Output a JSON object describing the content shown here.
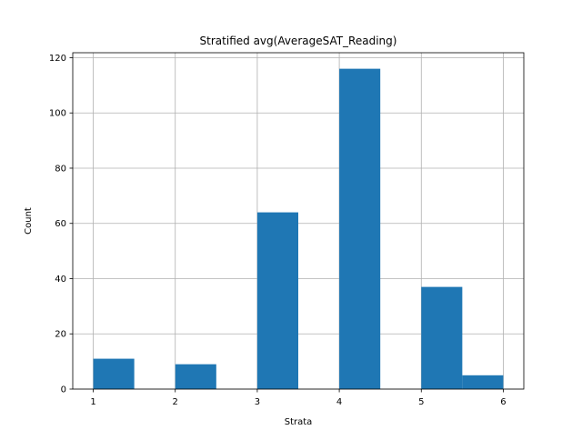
{
  "chart_data": {
    "type": "bar",
    "title": "Stratified avg(AverageSAT_Reading)",
    "xlabel": "Strata",
    "ylabel": "Count",
    "bins": [
      {
        "x0": 1.0,
        "x1": 1.5,
        "count": 11
      },
      {
        "x0": 1.5,
        "x1": 2.0,
        "count": 0
      },
      {
        "x0": 2.0,
        "x1": 2.5,
        "count": 9
      },
      {
        "x0": 2.5,
        "x1": 3.0,
        "count": 0
      },
      {
        "x0": 3.0,
        "x1": 3.5,
        "count": 64
      },
      {
        "x0": 3.5,
        "x1": 4.0,
        "count": 0
      },
      {
        "x0": 4.0,
        "x1": 4.5,
        "count": 116
      },
      {
        "x0": 4.5,
        "x1": 5.0,
        "count": 0
      },
      {
        "x0": 5.0,
        "x1": 5.5,
        "count": 37
      },
      {
        "x0": 5.5,
        "x1": 6.0,
        "count": 5
      }
    ],
    "xlim": [
      0.75,
      6.25
    ],
    "ylim": [
      0,
      121.8
    ],
    "xticks": [
      "1",
      "2",
      "3",
      "4",
      "5",
      "6"
    ],
    "yticks": [
      "0",
      "20",
      "40",
      "60",
      "80",
      "100",
      "120"
    ],
    "grid": true,
    "bar_color": "#1f77b4"
  }
}
